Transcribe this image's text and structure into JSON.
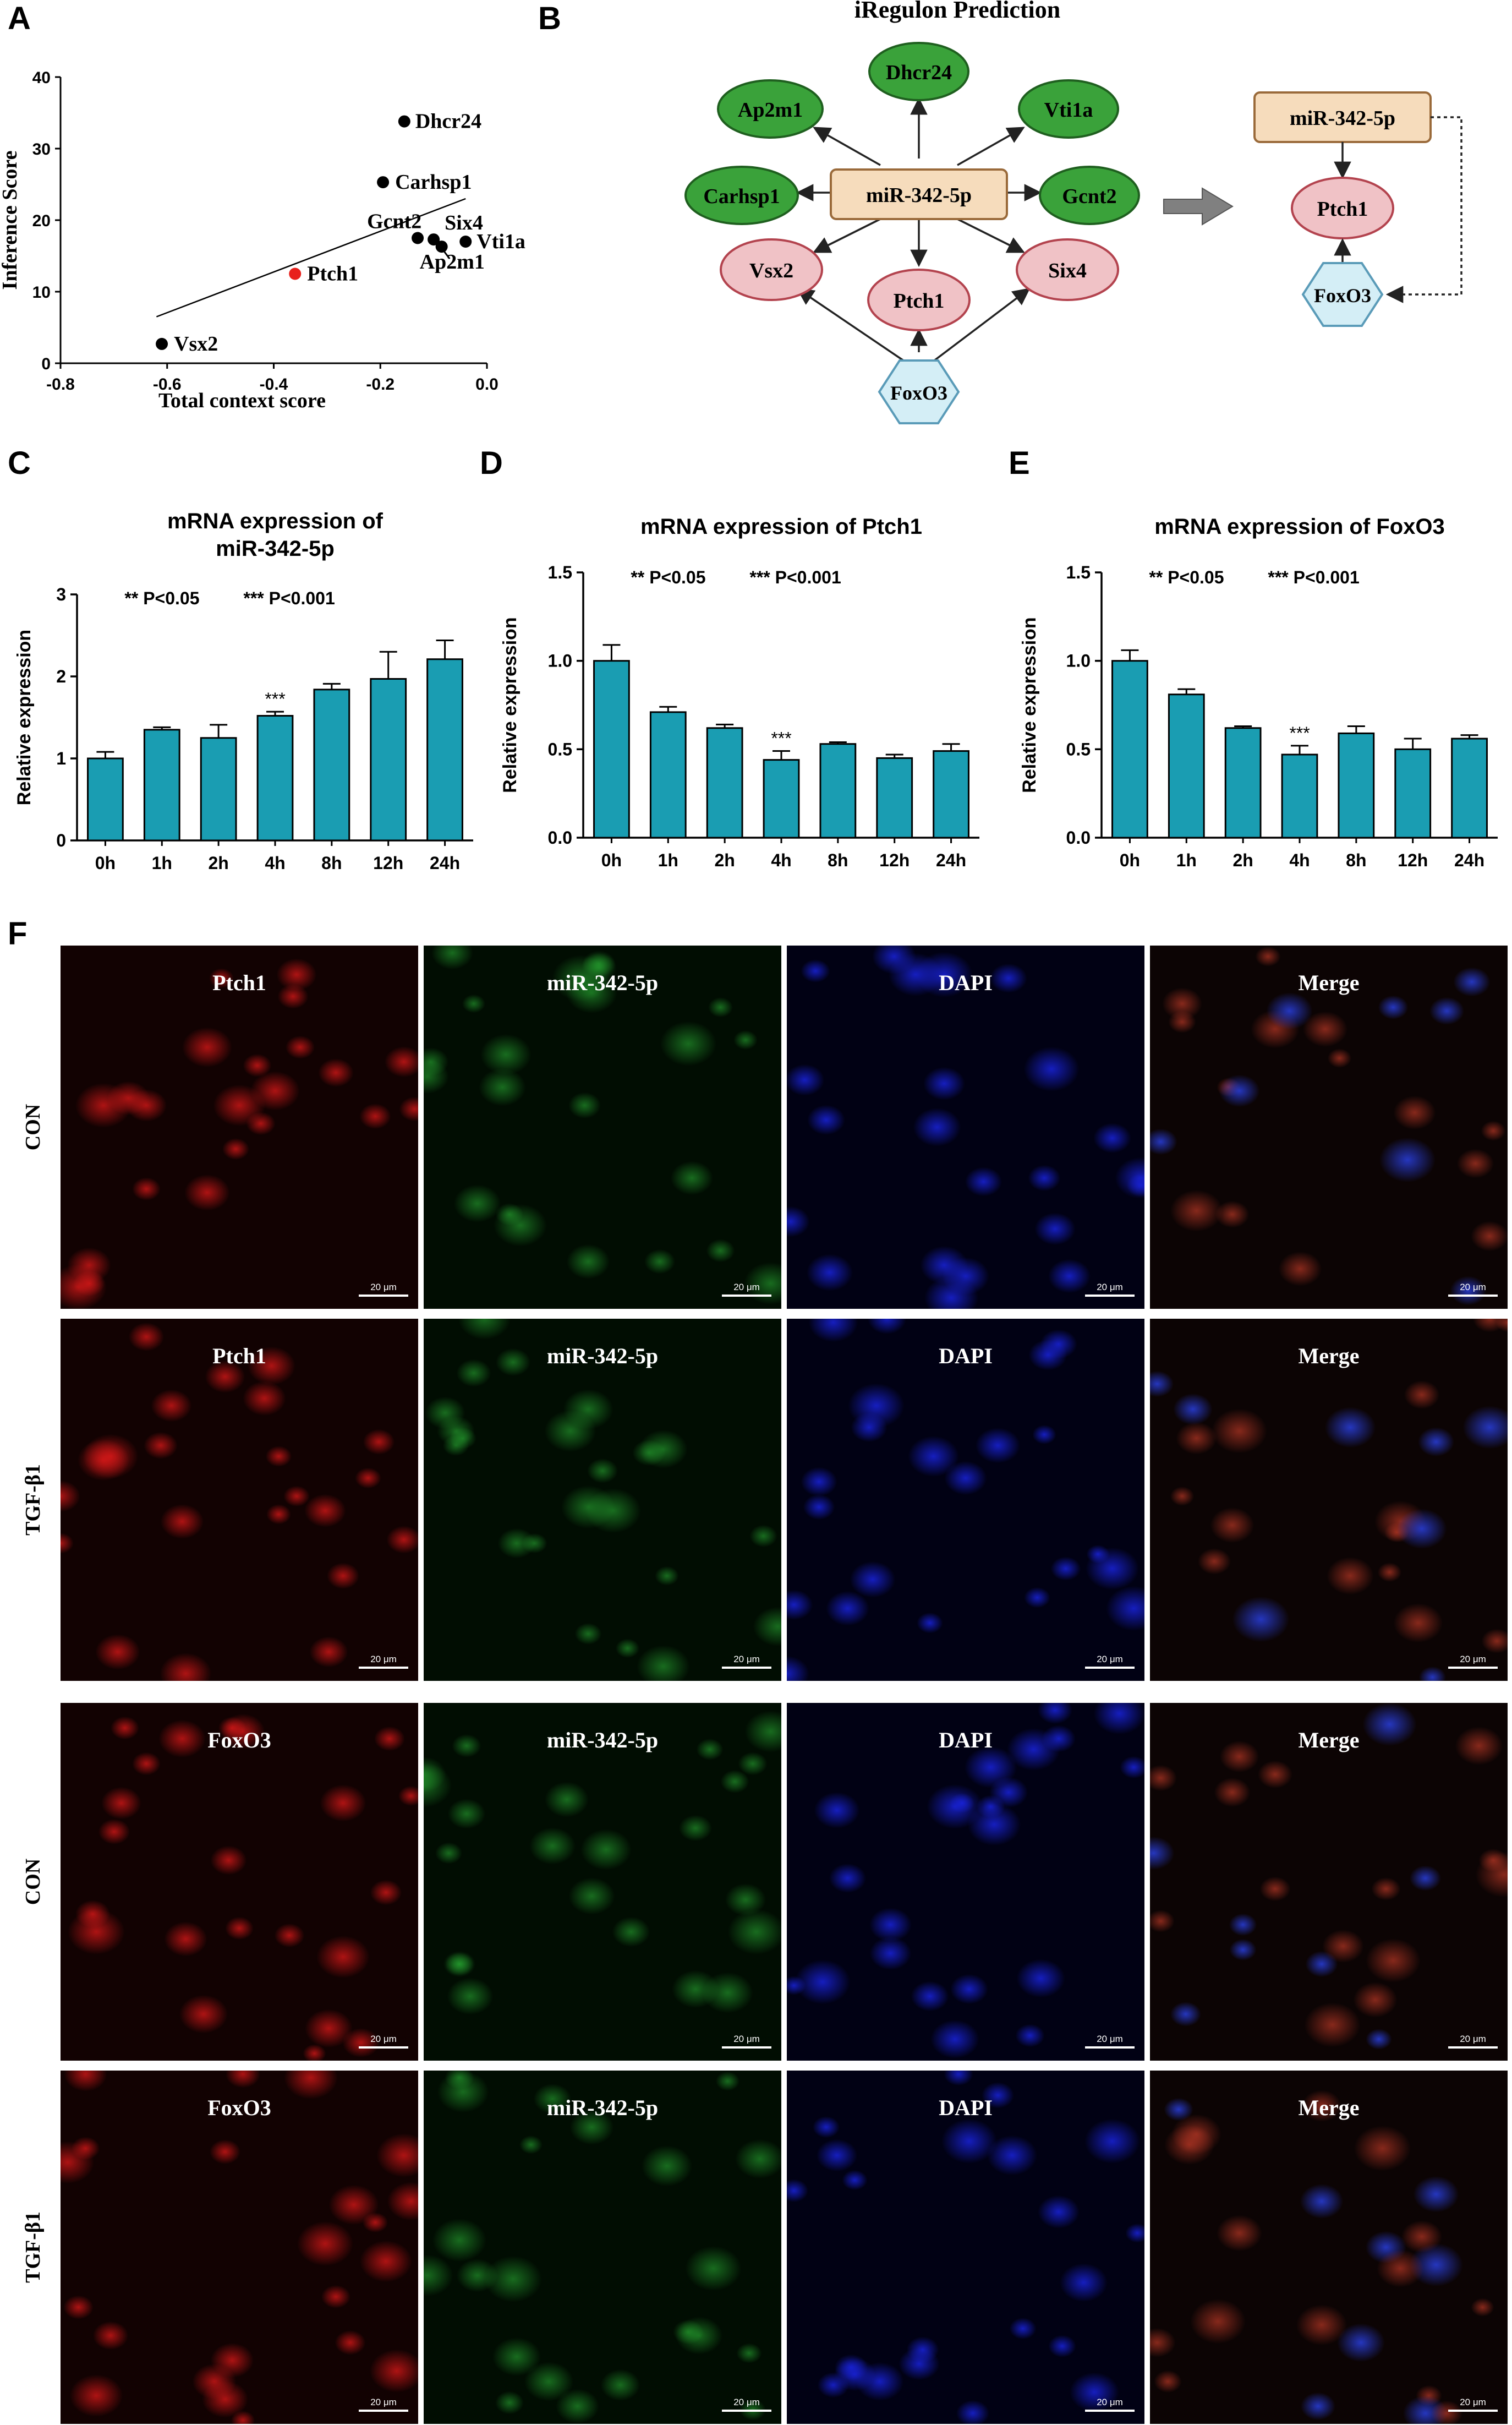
{
  "panels": {
    "A": "A",
    "B": "B",
    "C": "C",
    "D": "D",
    "E": "E",
    "F": "F"
  },
  "panelA": {
    "chart_data": {
      "type": "scatter",
      "xlabel": "Total context score",
      "ylabel": "Inference Score",
      "xlim": [
        -0.8,
        0.0
      ],
      "ylim": [
        0,
        40
      ],
      "xticks": [
        "-0.8",
        "-0.6",
        "-0.4",
        "-0.2",
        "0.0"
      ],
      "yticks": [
        "0",
        "10",
        "20",
        "30",
        "40"
      ],
      "points": [
        {
          "label": "Dhcr24",
          "x": -0.155,
          "y": 33.8,
          "color": "#000000"
        },
        {
          "label": "Carhsp1",
          "x": -0.195,
          "y": 25.3,
          "color": "#000000"
        },
        {
          "label": "Gcnt2",
          "x": -0.13,
          "y": 17.5,
          "color": "#000000"
        },
        {
          "label": "Six4",
          "x": -0.1,
          "y": 17.3,
          "color": "#000000"
        },
        {
          "label": "Ap2m1",
          "x": -0.085,
          "y": 16.3,
          "color": "#000000"
        },
        {
          "label": "Vti1a",
          "x": -0.04,
          "y": 17.0,
          "color": "#000000"
        },
        {
          "label": "Ptch1",
          "x": -0.36,
          "y": 12.5,
          "color": "#e8201c"
        },
        {
          "label": "Vsx2",
          "x": -0.61,
          "y": 2.7,
          "color": "#000000"
        }
      ],
      "trendline": {
        "x": [
          -0.62,
          -0.04
        ],
        "y": [
          6.5,
          23.0
        ]
      }
    }
  },
  "panelB": {
    "title": "iRegulon Prediction",
    "center": "miR-342-5p",
    "green_targets": [
      "Dhcr24",
      "Ap2m1",
      "Vti1a",
      "Carhsp1",
      "Gcnt2"
    ],
    "pink_targets": [
      "Vsx2",
      "Ptch1",
      "Six4"
    ],
    "regulator": "FoxO3",
    "right": {
      "mirna": "miR-342-5p",
      "target": "Ptch1",
      "regulator": "FoxO3"
    },
    "colors": {
      "green": "#3aa23a",
      "pink": "#f0c2c6",
      "mirna_box": "#f6dcbc",
      "foxo": "#d4eef6"
    }
  },
  "barcharts": [
    {
      "key": "C",
      "chart_data": {
        "type": "bar",
        "title": "mRNA expression of\nmiR-342-5p",
        "ylabel": "Relative expression",
        "categories": [
          "0h",
          "1h",
          "2h",
          "4h",
          "8h",
          "12h",
          "24h"
        ],
        "values": [
          1.0,
          1.35,
          1.25,
          1.52,
          1.84,
          1.97,
          2.21
        ],
        "errors": [
          0.08,
          0.03,
          0.16,
          0.05,
          0.07,
          0.33,
          0.23
        ],
        "ylim": [
          0,
          3
        ],
        "yticks": [
          "0",
          "1",
          "2",
          "3"
        ],
        "sig_marks": [
          "",
          "",
          "",
          "***",
          "",
          "",
          ""
        ],
        "legend": [
          "** P<0.05",
          "*** P<0.001"
        ],
        "bar_color": "#1a9db2"
      }
    },
    {
      "key": "D",
      "chart_data": {
        "type": "bar",
        "title": "mRNA expression of Ptch1",
        "ylabel": "Relative expression",
        "categories": [
          "0h",
          "1h",
          "2h",
          "4h",
          "8h",
          "12h",
          "24h"
        ],
        "values": [
          1.0,
          0.71,
          0.62,
          0.44,
          0.53,
          0.45,
          0.49
        ],
        "errors": [
          0.09,
          0.03,
          0.02,
          0.05,
          0.01,
          0.02,
          0.04
        ],
        "ylim": [
          0,
          1.5
        ],
        "yticks": [
          "0.0",
          "0.5",
          "1.0",
          "1.5"
        ],
        "sig_marks": [
          "",
          "",
          "",
          "***",
          "",
          "",
          ""
        ],
        "legend": [
          "** P<0.05",
          "*** P<0.001"
        ],
        "bar_color": "#1a9db2"
      }
    },
    {
      "key": "E",
      "chart_data": {
        "type": "bar",
        "title": "mRNA expression of FoxO3",
        "ylabel": "Relative expression",
        "categories": [
          "0h",
          "1h",
          "2h",
          "4h",
          "8h",
          "12h",
          "24h"
        ],
        "values": [
          1.0,
          0.81,
          0.62,
          0.47,
          0.59,
          0.5,
          0.56
        ],
        "errors": [
          0.06,
          0.03,
          0.01,
          0.05,
          0.04,
          0.06,
          0.02
        ],
        "ylim": [
          0,
          1.5
        ],
        "yticks": [
          "0.0",
          "0.5",
          "1.0",
          "1.5"
        ],
        "sig_marks": [
          "",
          "",
          "",
          "***",
          "",
          "",
          ""
        ],
        "legend": [
          "** P<0.05",
          "*** P<0.001"
        ],
        "bar_color": "#1a9db2"
      }
    }
  ],
  "panelF": {
    "scale_bar": "20 μm",
    "rows": [
      {
        "group": "CON",
        "channels": [
          "Ptch1",
          "miR-342-5p",
          "DAPI",
          "Merge"
        ]
      },
      {
        "group": "TGF-β1",
        "channels": [
          "Ptch1",
          "miR-342-5p",
          "DAPI",
          "Merge"
        ]
      },
      {
        "group": "CON",
        "channels": [
          "FoxO3",
          "miR-342-5p",
          "DAPI",
          "Merge"
        ]
      },
      {
        "group": "TGF-β1",
        "channels": [
          "FoxO3",
          "miR-342-5p",
          "DAPI",
          "Merge"
        ]
      }
    ]
  }
}
